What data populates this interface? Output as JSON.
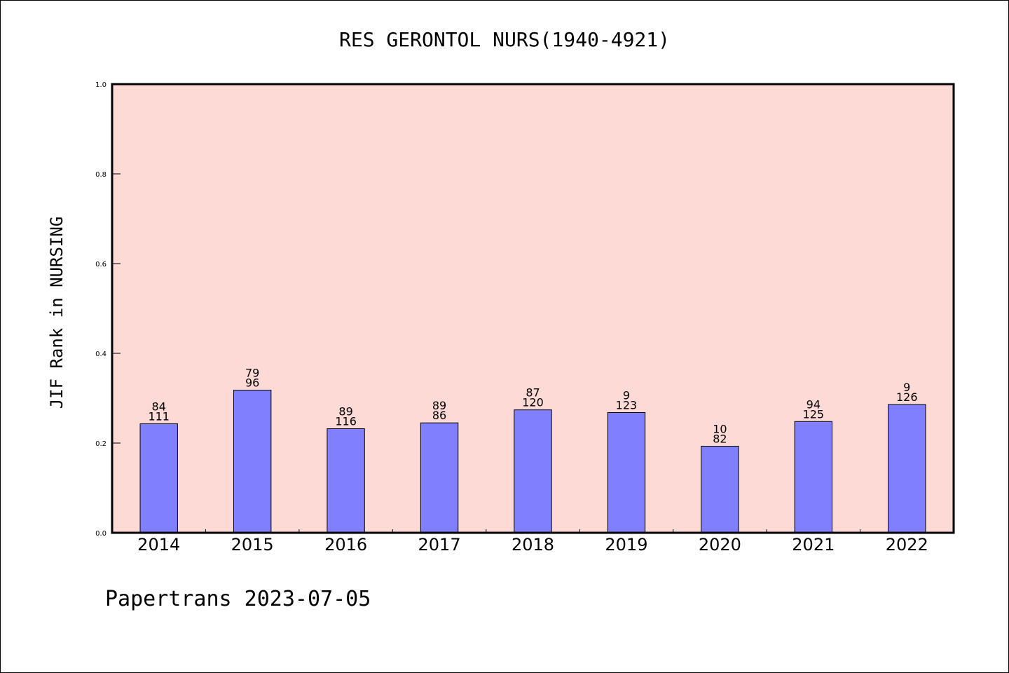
{
  "colors": {
    "plot_background": "#fddad6",
    "bar_fill": "#8080ff",
    "bar_stroke": "#000000"
  },
  "chart_data": {
    "type": "bar",
    "title": "RES GERONTOL NURS(1940-4921)",
    "ylabel": "JIF Rank in NURSING",
    "xlabel": "",
    "ylim": [
      0,
      1.0
    ],
    "yticks": [
      "0.0",
      "0.2",
      "0.4",
      "0.6",
      "0.8",
      "1.0"
    ],
    "categories": [
      "2014",
      "2015",
      "2016",
      "2017",
      "2018",
      "2019",
      "2020",
      "2021",
      "2022"
    ],
    "values": [
      0.243,
      0.318,
      0.232,
      0.245,
      0.274,
      0.268,
      0.193,
      0.248,
      0.286
    ],
    "labels_top": [
      "84",
      "79",
      "89",
      "89",
      "87",
      "9",
      "10",
      "94",
      "9"
    ],
    "labels_bottom": [
      "111",
      "96",
      "116",
      "86",
      "120",
      "123",
      "82",
      "125",
      "126"
    ],
    "grid": false,
    "legend": "none"
  },
  "footer": "Papertrans 2023-07-05"
}
